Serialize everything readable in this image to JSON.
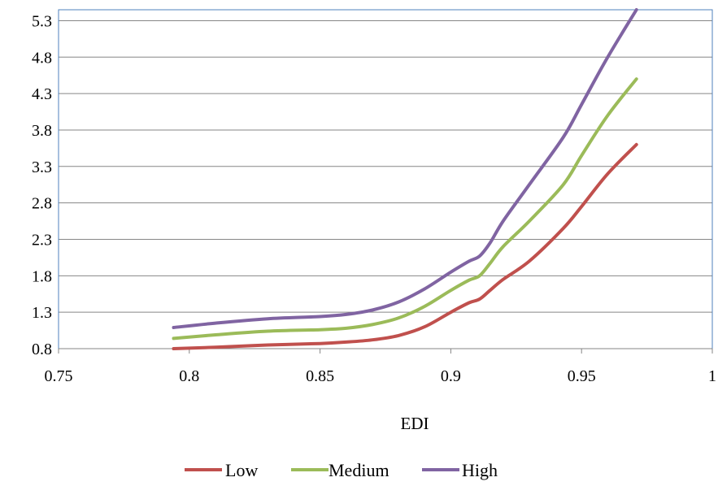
{
  "chart_data": {
    "type": "line",
    "title": "",
    "xlabel": "EDI",
    "ylabel": "",
    "xlim": [
      0.75,
      1
    ],
    "ylim": [
      0.8,
      5.45
    ],
    "x_ticks": [
      "0.75",
      "0.8",
      "0.85",
      "0.9",
      "0.95",
      "1"
    ],
    "y_ticks": [
      "0.8",
      "1.3",
      "1.8",
      "2.3",
      "2.8",
      "3.3",
      "3.8",
      "4.3",
      "4.8",
      "5.3"
    ],
    "grid": "horizontal",
    "legend_position": "bottom",
    "series": [
      {
        "name": "Low",
        "color": "#c0504d",
        "points": [
          [
            0.794,
            0.8
          ],
          [
            0.81,
            0.82
          ],
          [
            0.83,
            0.85
          ],
          [
            0.85,
            0.87
          ],
          [
            0.86,
            0.89
          ],
          [
            0.87,
            0.92
          ],
          [
            0.88,
            0.98
          ],
          [
            0.89,
            1.1
          ],
          [
            0.9,
            1.3
          ],
          [
            0.907,
            1.43
          ],
          [
            0.911,
            1.48
          ],
          [
            0.915,
            1.6
          ],
          [
            0.92,
            1.75
          ],
          [
            0.93,
            2.0
          ],
          [
            0.943,
            2.45
          ],
          [
            0.95,
            2.75
          ],
          [
            0.96,
            3.2
          ],
          [
            0.971,
            3.6
          ]
        ]
      },
      {
        "name": "Medium",
        "color": "#9bbb59",
        "points": [
          [
            0.794,
            0.94
          ],
          [
            0.81,
            0.99
          ],
          [
            0.83,
            1.04
          ],
          [
            0.85,
            1.06
          ],
          [
            0.86,
            1.08
          ],
          [
            0.87,
            1.13
          ],
          [
            0.88,
            1.22
          ],
          [
            0.89,
            1.38
          ],
          [
            0.9,
            1.6
          ],
          [
            0.907,
            1.74
          ],
          [
            0.911,
            1.8
          ],
          [
            0.915,
            1.97
          ],
          [
            0.92,
            2.2
          ],
          [
            0.93,
            2.55
          ],
          [
            0.943,
            3.05
          ],
          [
            0.95,
            3.45
          ],
          [
            0.96,
            4.0
          ],
          [
            0.971,
            4.5
          ]
        ]
      },
      {
        "name": "High",
        "color": "#8064a2",
        "points": [
          [
            0.794,
            1.09
          ],
          [
            0.81,
            1.15
          ],
          [
            0.83,
            1.21
          ],
          [
            0.85,
            1.24
          ],
          [
            0.86,
            1.27
          ],
          [
            0.87,
            1.33
          ],
          [
            0.88,
            1.44
          ],
          [
            0.89,
            1.62
          ],
          [
            0.9,
            1.85
          ],
          [
            0.907,
            2.0
          ],
          [
            0.911,
            2.07
          ],
          [
            0.915,
            2.25
          ],
          [
            0.92,
            2.55
          ],
          [
            0.93,
            3.05
          ],
          [
            0.943,
            3.7
          ],
          [
            0.95,
            4.15
          ],
          [
            0.96,
            4.8
          ],
          [
            0.971,
            5.45
          ]
        ]
      }
    ]
  }
}
